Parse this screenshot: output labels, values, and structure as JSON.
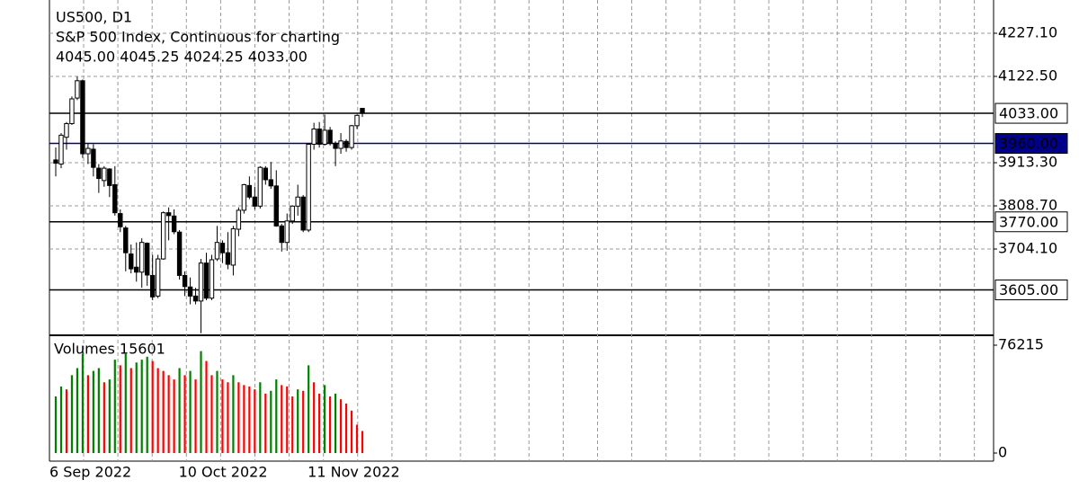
{
  "header": {
    "symbol": "US500, D1",
    "description": "S&P 500 Index, Continuous for charting",
    "ohlc": "4045.00 4045.25 4024.25 4033.00"
  },
  "chart_data": [
    {
      "type": "candlestick",
      "categories": [
        "6 Sep 2022",
        null,
        null,
        null,
        null,
        null,
        null,
        null,
        null,
        null,
        null,
        null,
        null,
        null,
        null,
        null,
        null,
        null,
        null,
        null,
        null,
        null,
        null,
        null,
        "10 Oct 2022",
        null,
        null,
        null,
        null,
        null,
        null,
        null,
        null,
        null,
        null,
        null,
        null,
        null,
        null,
        null,
        null,
        null,
        null,
        null,
        null,
        null,
        null,
        null,
        "11 Nov 2022",
        null,
        null,
        null,
        null,
        null,
        null,
        null,
        null,
        null
      ],
      "open": [
        3920,
        3910,
        3975,
        4008,
        4070,
        4112,
        3935,
        3946,
        3900,
        3870,
        3898,
        3860,
        3790,
        3755,
        3692,
        3660,
        3648,
        3718,
        3640,
        3590,
        3680,
        3792,
        3784,
        3745,
        3640,
        3612,
        3590,
        3578,
        3670,
        3585,
        3680,
        3718,
        3695,
        3665,
        3752,
        3798,
        3858,
        3830,
        3808,
        3900,
        3872,
        3857,
        3760,
        3720,
        3772,
        3808,
        3830,
        3750,
        3958,
        3995,
        3958,
        3992,
        3960,
        3948,
        3965,
        3950,
        4003,
        4045
      ],
      "high": [
        3950,
        3985,
        4012,
        4074,
        4122,
        4115,
        3960,
        3958,
        3910,
        3905,
        3900,
        3905,
        3800,
        3760,
        3715,
        3720,
        3730,
        3720,
        3690,
        3690,
        3795,
        3805,
        3800,
        3750,
        3650,
        3635,
        3610,
        3680,
        3695,
        3690,
        3760,
        3725,
        3745,
        3760,
        3805,
        3862,
        3880,
        3855,
        3905,
        3905,
        3915,
        3895,
        3765,
        3790,
        3810,
        3860,
        3835,
        3960,
        4010,
        4012,
        4030,
        4000,
        3965,
        3985,
        3970,
        4005,
        4030,
        4045.25
      ],
      "low": [
        3880,
        3900,
        3945,
        4005,
        4065,
        3925,
        3910,
        3880,
        3840,
        3855,
        3830,
        3785,
        3745,
        3650,
        3645,
        3625,
        3610,
        3615,
        3580,
        3585,
        3678,
        3725,
        3740,
        3630,
        3590,
        3570,
        3570,
        3500,
        3580,
        3580,
        3675,
        3670,
        3655,
        3640,
        3735,
        3790,
        3825,
        3800,
        3802,
        3860,
        3850,
        3758,
        3698,
        3700,
        3765,
        3785,
        3745,
        3745,
        3945,
        3950,
        3955,
        3955,
        3905,
        3935,
        3940,
        3945,
        3995,
        4024.25
      ],
      "close": [
        3912,
        3980,
        4008,
        4068,
        4112,
        3935,
        3948,
        3902,
        3875,
        3900,
        3858,
        3792,
        3758,
        3695,
        3656,
        3648,
        3720,
        3641,
        3588,
        3680,
        3792,
        3785,
        3746,
        3640,
        3613,
        3590,
        3578,
        3670,
        3585,
        3678,
        3720,
        3695,
        3667,
        3753,
        3798,
        3860,
        3830,
        3808,
        3902,
        3872,
        3857,
        3760,
        3720,
        3772,
        3808,
        3830,
        3750,
        3958,
        3995,
        3958,
        3992,
        3960,
        3948,
        3966,
        3950,
        4003,
        4028,
        4033
      ],
      "up_color": "#ffffff",
      "down_color": "#000000",
      "wick_color": "#000000",
      "ylim": [
        3494.9,
        4307.7
      ],
      "yticks": [
        {
          "value": 4227.1,
          "label": "4227.10"
        },
        {
          "value": 4122.5,
          "label": "4122.50"
        },
        {
          "value": 3913.3,
          "label": "3913.30"
        },
        {
          "value": 3808.7,
          "label": "3808.70"
        },
        {
          "value": 3704.1,
          "label": "3704.10"
        }
      ],
      "grid": true,
      "price_lines": [
        {
          "value": 4033,
          "label": "4033.00",
          "color": "#000000",
          "label_color": "#000000",
          "label_fill": "#ffffff"
        },
        {
          "value": 3960,
          "label": "3960.00",
          "color": "#00008b",
          "label_color": "#ffffff",
          "label_fill": "#00008b"
        },
        {
          "value": 3770,
          "label": "3770.00",
          "color": "#000000",
          "label_color": "#000000",
          "label_fill": "#ffffff"
        },
        {
          "value": 3605,
          "label": "3605.00",
          "color": "#000000",
          "label_color": "#000000",
          "label_fill": "#ffffff"
        }
      ]
    },
    {
      "type": "bar",
      "title": "Volumes 15601",
      "values": [
        40000,
        47000,
        45000,
        55000,
        60000,
        70000,
        55000,
        58000,
        60000,
        50000,
        52000,
        66000,
        62000,
        70000,
        60000,
        64000,
        66000,
        68000,
        65000,
        60000,
        58000,
        55000,
        52000,
        60000,
        55000,
        58000,
        52000,
        72000,
        65000,
        55000,
        58000,
        52000,
        50000,
        55000,
        50000,
        48000,
        47000,
        45000,
        50000,
        42000,
        44000,
        52000,
        48000,
        47000,
        40000,
        45000,
        44000,
        62000,
        50000,
        42000,
        48000,
        40000,
        42000,
        38000,
        35000,
        30000,
        20000,
        15601
      ],
      "up_color": "#008000",
      "down_color": "#ff0000",
      "ylim": [
        0,
        76215
      ],
      "yticks": [
        0,
        76215
      ]
    }
  ]
}
